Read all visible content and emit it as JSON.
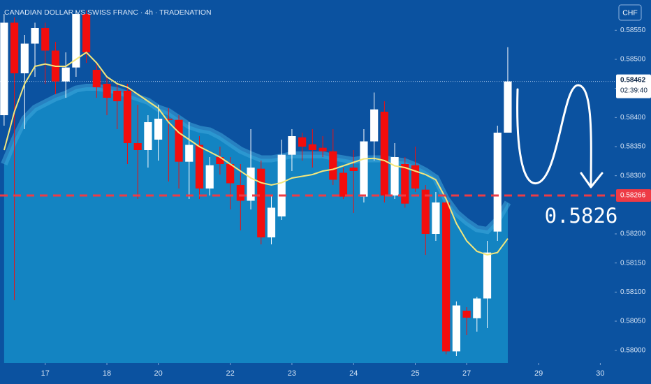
{
  "chart_data": {
    "type": "candlestick",
    "title": "CANADIAN DOLLAR VS SWISS FRANC · 4h · TRADENATION",
    "currency": "CHF",
    "up_color": "#ffffff",
    "down_color": "#f20d0d",
    "open": [
      0.58404,
      0.58563,
      0.58476,
      0.58527,
      0.58554,
      0.58515,
      0.58462,
      0.58486,
      0.58578,
      0.58482,
      0.58458,
      0.58446,
      0.58446,
      0.58356,
      0.58344,
      0.58362,
      0.58398,
      0.58396,
      0.58324,
      0.58353,
      0.58278,
      0.58332,
      0.5832,
      0.58284,
      0.58257,
      0.58312,
      0.58194,
      0.5823,
      0.58336,
      0.58366,
      0.58354,
      0.58348,
      0.58342,
      0.58305,
      0.58314,
      0.58264,
      0.58359,
      0.5841,
      0.58266,
      0.5832,
      0.58318,
      0.58276,
      0.582,
      0.58254,
      0.57998,
      0.58068,
      0.58055,
      0.58089,
      0.58204,
      0.58374
    ],
    "high": [
      0.58578,
      0.58572,
      0.58542,
      0.58563,
      0.58563,
      0.5853,
      0.58512,
      0.58584,
      0.58584,
      0.58494,
      0.5847,
      0.58458,
      0.58458,
      0.58422,
      0.58404,
      0.58422,
      0.58416,
      0.58404,
      0.58392,
      0.58368,
      0.58332,
      0.5835,
      0.58332,
      0.5832,
      0.5838,
      0.58326,
      0.58266,
      0.58362,
      0.5838,
      0.58374,
      0.5838,
      0.58368,
      0.5838,
      0.58314,
      0.58344,
      0.5838,
      0.58443,
      0.58428,
      0.58356,
      0.58332,
      0.5835,
      0.58284,
      0.58272,
      0.58266,
      0.58084,
      0.58074,
      0.58092,
      0.58188,
      0.58386,
      0.58521
    ],
    "low": [
      0.58386,
      0.58086,
      0.5838,
      0.5847,
      0.58458,
      0.5844,
      0.58434,
      0.5847,
      0.58494,
      0.58434,
      0.58404,
      0.5838,
      0.5832,
      0.5826,
      0.58314,
      0.58326,
      0.5829,
      0.58278,
      0.5826,
      0.5826,
      0.58266,
      0.58302,
      0.58242,
      0.58206,
      0.58242,
      0.58182,
      0.58182,
      0.58224,
      0.58308,
      0.58326,
      0.58314,
      0.58332,
      0.58284,
      0.5826,
      0.58236,
      0.58254,
      0.58326,
      0.58254,
      0.5826,
      0.58245,
      0.58272,
      0.58164,
      0.58188,
      0.57993,
      0.5799,
      0.58026,
      0.58032,
      0.58038,
      0.58188,
      0.58374
    ],
    "close": [
      0.58563,
      0.58476,
      0.58527,
      0.58554,
      0.58515,
      0.58462,
      0.58486,
      0.58578,
      0.58512,
      0.58452,
      0.58434,
      0.58428,
      0.58356,
      0.58344,
      0.58392,
      0.58398,
      0.58396,
      0.58324,
      0.58353,
      0.58278,
      0.58318,
      0.5832,
      0.58287,
      0.58257,
      0.58314,
      0.58194,
      0.58245,
      0.58336,
      0.58368,
      0.5835,
      0.58344,
      0.58342,
      0.58293,
      0.58264,
      0.58308,
      0.58359,
      0.58414,
      0.58266,
      0.58332,
      0.58252,
      0.58278,
      0.582,
      0.58254,
      0.57998,
      0.58077,
      0.58056,
      0.58089,
      0.58168,
      0.58374,
      0.58462
    ],
    "ma_line": {
      "color": "#f3e77c",
      "values": [
        0.58344,
        0.5841,
        0.58458,
        0.58488,
        0.58492,
        0.58488,
        0.58488,
        0.585,
        0.58512,
        0.58494,
        0.5847,
        0.58458,
        0.58452,
        0.5844,
        0.58428,
        0.58416,
        0.58392,
        0.58374,
        0.58362,
        0.5835,
        0.58341,
        0.58332,
        0.5832,
        0.58308,
        0.58296,
        0.58288,
        0.58284,
        0.58288,
        0.58296,
        0.58299,
        0.58302,
        0.58308,
        0.58311,
        0.58317,
        0.58323,
        0.58329,
        0.5833,
        0.58326,
        0.58317,
        0.58314,
        0.58308,
        0.58302,
        0.58293,
        0.5826,
        0.58218,
        0.58188,
        0.5817,
        0.58164,
        0.58168,
        0.58192
      ]
    },
    "cloud": {
      "color": "#1384c2",
      "edge_color": "#3fa7dc",
      "values": [
        0.5832,
        0.58362,
        0.58398,
        0.58416,
        0.58425,
        0.58434,
        0.5844,
        0.58449,
        0.58452,
        0.58452,
        0.58449,
        0.58446,
        0.5844,
        0.58434,
        0.58428,
        0.58416,
        0.5841,
        0.58398,
        0.58386,
        0.5838,
        0.58377,
        0.58368,
        0.58356,
        0.58344,
        0.58336,
        0.58329,
        0.58329,
        0.58332,
        0.58336,
        0.58336,
        0.58336,
        0.58336,
        0.58332,
        0.58329,
        0.58326,
        0.58329,
        0.58329,
        0.58329,
        0.58326,
        0.58324,
        0.58317,
        0.58308,
        0.58296,
        0.5826,
        0.58236,
        0.58221,
        0.58209,
        0.58206,
        0.58224,
        0.58254
      ]
    },
    "ylim": [
      0.57978,
      0.58602
    ],
    "yticks": [
      {
        "value": 0.58,
        "label": "0.58000"
      },
      {
        "value": 0.5805,
        "label": "0.58050"
      },
      {
        "value": 0.581,
        "label": "0.58100"
      },
      {
        "value": 0.5815,
        "label": "0.58150"
      },
      {
        "value": 0.582,
        "label": "0.58200"
      },
      {
        "value": 0.583,
        "label": "0.58300"
      },
      {
        "value": 0.5835,
        "label": "0.58350"
      },
      {
        "value": 0.584,
        "label": "0.58400"
      },
      {
        "value": 0.5845,
        "label": "0.58450"
      },
      {
        "value": 0.585,
        "label": "0.58500"
      },
      {
        "value": 0.5855,
        "label": "0.58550"
      }
    ],
    "xlim": [
      -0.4,
      59.4
    ],
    "xticks": [
      {
        "value": 4,
        "label": "17"
      },
      {
        "value": 10,
        "label": "18"
      },
      {
        "value": 15,
        "label": "20"
      },
      {
        "value": 22,
        "label": "22"
      },
      {
        "value": 28,
        "label": "23"
      },
      {
        "value": 34,
        "label": "24"
      },
      {
        "value": 40,
        "label": "25"
      },
      {
        "value": 45,
        "label": "27"
      },
      {
        "value": 52,
        "label": "29"
      },
      {
        "value": 58,
        "label": "30"
      }
    ],
    "price_line": {
      "value": 0.58462,
      "label": "0.58462",
      "countdown": "02:39:40"
    },
    "level": {
      "value": 0.58266,
      "label": "0.58266",
      "color": "#ee3b45"
    },
    "annotation": "0.5826"
  }
}
